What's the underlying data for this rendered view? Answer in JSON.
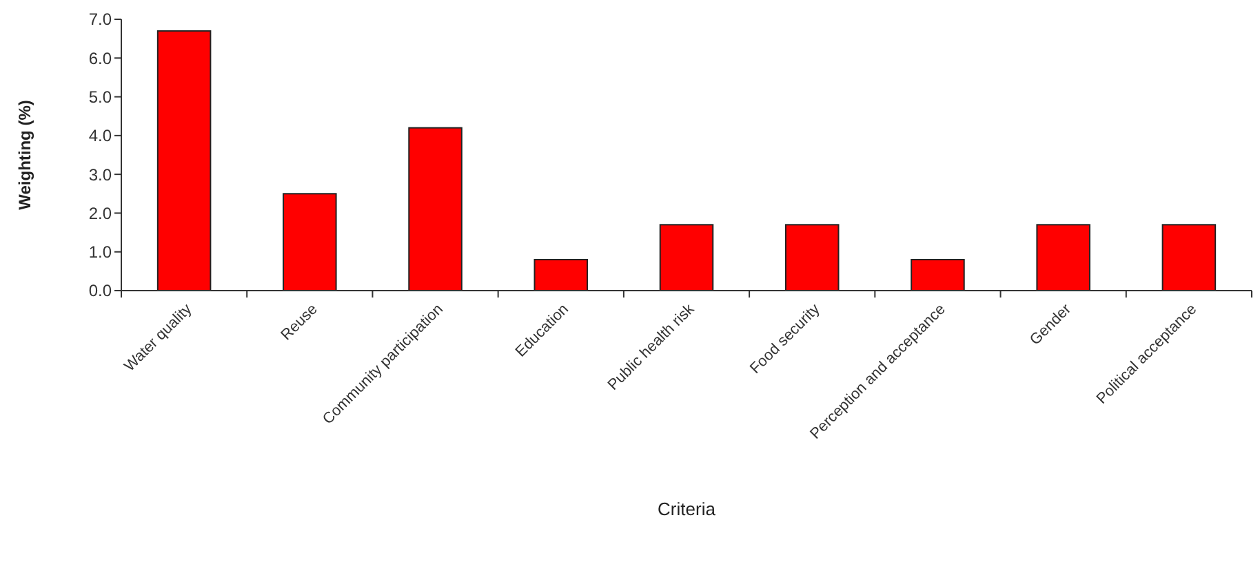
{
  "chart_data": {
    "type": "bar",
    "xlabel": "Criteria",
    "ylabel": "Weighting (%)",
    "categories": [
      "Water quality",
      "Reuse",
      "Community participation",
      "Education",
      "Public health risk",
      "Food security",
      "Perception and acceptance",
      "Gender",
      "Political acceptance"
    ],
    "values": [
      6.7,
      2.5,
      4.2,
      0.8,
      1.7,
      1.7,
      0.8,
      1.7,
      1.7
    ],
    "color": "#ff0000",
    "ylim": [
      0,
      7
    ],
    "yticks": [
      {
        "value": 0,
        "label": "0.0"
      },
      {
        "value": 1,
        "label": "1.0"
      },
      {
        "value": 2,
        "label": "2.0"
      },
      {
        "value": 3,
        "label": "3.0"
      },
      {
        "value": 4,
        "label": "4.0"
      },
      {
        "value": 5,
        "label": "5.0"
      },
      {
        "value": 6,
        "label": "6.0"
      },
      {
        "value": 7,
        "label": "7.0"
      }
    ],
    "grid": false
  }
}
